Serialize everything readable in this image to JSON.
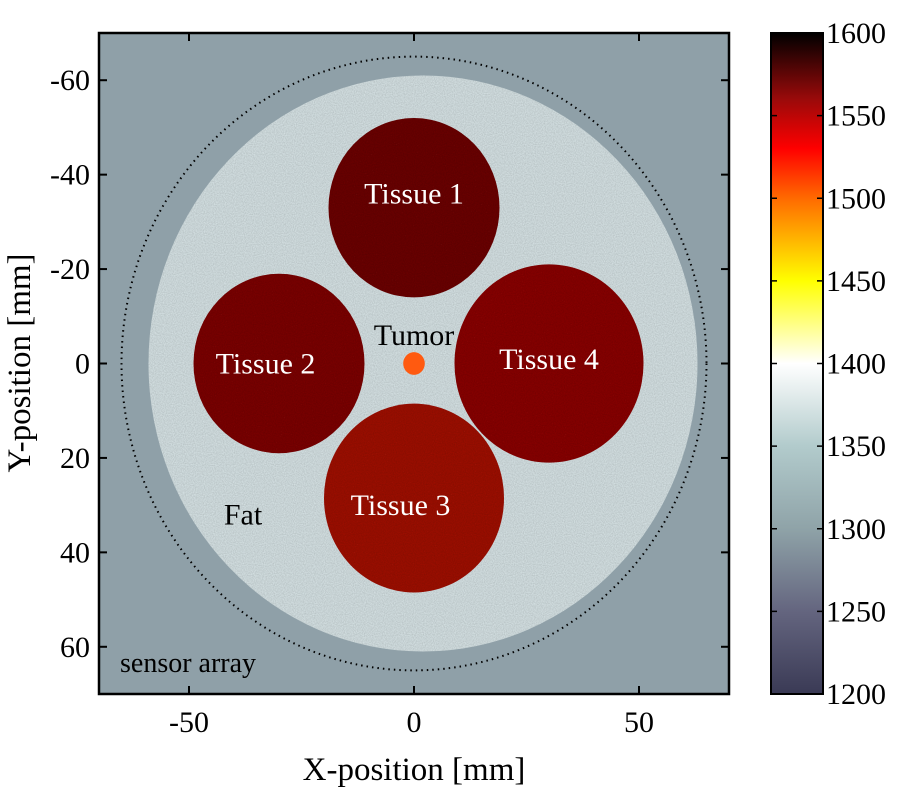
{
  "chart_data": {
    "type": "heatmap",
    "xlabel": "X-position [mm]",
    "ylabel": "Y-position [mm]",
    "xlim": [
      -70,
      70
    ],
    "ylim": [
      -70,
      70
    ],
    "y_axis_inverted": true,
    "xticks": [
      -50,
      0,
      50
    ],
    "yticks": [
      -60,
      -40,
      -20,
      0,
      20,
      40,
      60
    ],
    "grid": false,
    "colorbar": {
      "position": "right",
      "range": [
        1200,
        1600
      ],
      "ticks": [
        1200,
        1250,
        1300,
        1350,
        1400,
        1450,
        1500,
        1550,
        1600
      ],
      "stops": [
        {
          "value": 1200,
          "color": "#3a3a55"
        },
        {
          "value": 1250,
          "color": "#64657f"
        },
        {
          "value": 1300,
          "color": "#8fa3a8"
        },
        {
          "value": 1350,
          "color": "#b2cbcc"
        },
        {
          "value": 1400,
          "color": "#ffffff"
        },
        {
          "value": 1450,
          "color": "#ffff00"
        },
        {
          "value": 1500,
          "color": "#ff6a00"
        },
        {
          "value": 1530,
          "color": "#ff0000"
        },
        {
          "value": 1560,
          "color": "#9a0a0a"
        },
        {
          "value": 1600,
          "color": "#000000"
        }
      ]
    },
    "background": {
      "value": 1300,
      "color": "#8fa0a8"
    },
    "regions": [
      {
        "label": "Fat",
        "shape": "circle",
        "center": [
          2,
          0
        ],
        "radius": 61,
        "value": 1370,
        "color": "#d3dfe1",
        "label_at": [
          -38,
          32
        ],
        "label_color": "#000000"
      },
      {
        "label": "Tissue 1",
        "shape": "circle",
        "center": [
          0,
          -33
        ],
        "radius": 19,
        "value": 1585,
        "color": "#6b0c0c",
        "label_at": [
          0,
          -36
        ],
        "label_color": "#ffffff"
      },
      {
        "label": "Tissue 2",
        "shape": "circle",
        "center": [
          -30,
          0
        ],
        "radius": 19,
        "value": 1575,
        "color": "#7a0f0f",
        "label_at": [
          -33,
          0
        ],
        "label_color": "#ffffff"
      },
      {
        "label": "Tissue 3",
        "shape": "circle",
        "center": [
          0,
          28.5
        ],
        "radius": 20,
        "value": 1560,
        "color": "#9c1510",
        "label_at": [
          -3,
          30
        ],
        "label_color": "#ffffff"
      },
      {
        "label": "Tissue 4",
        "shape": "circle",
        "center": [
          30,
          0
        ],
        "radius": 21,
        "value": 1570,
        "color": "#871111",
        "label_at": [
          30,
          -1
        ],
        "label_color": "#ffffff"
      },
      {
        "label": "Tumor",
        "shape": "circle",
        "center": [
          0,
          0
        ],
        "radius": 2.4,
        "value": 1505,
        "color": "#ff5a10",
        "label_at": [
          0,
          -6
        ],
        "label_color": "#000000"
      }
    ],
    "sensor_array": {
      "label": "sensor array",
      "center": [
        0,
        0
      ],
      "radius": 65,
      "style": "dotted"
    }
  }
}
